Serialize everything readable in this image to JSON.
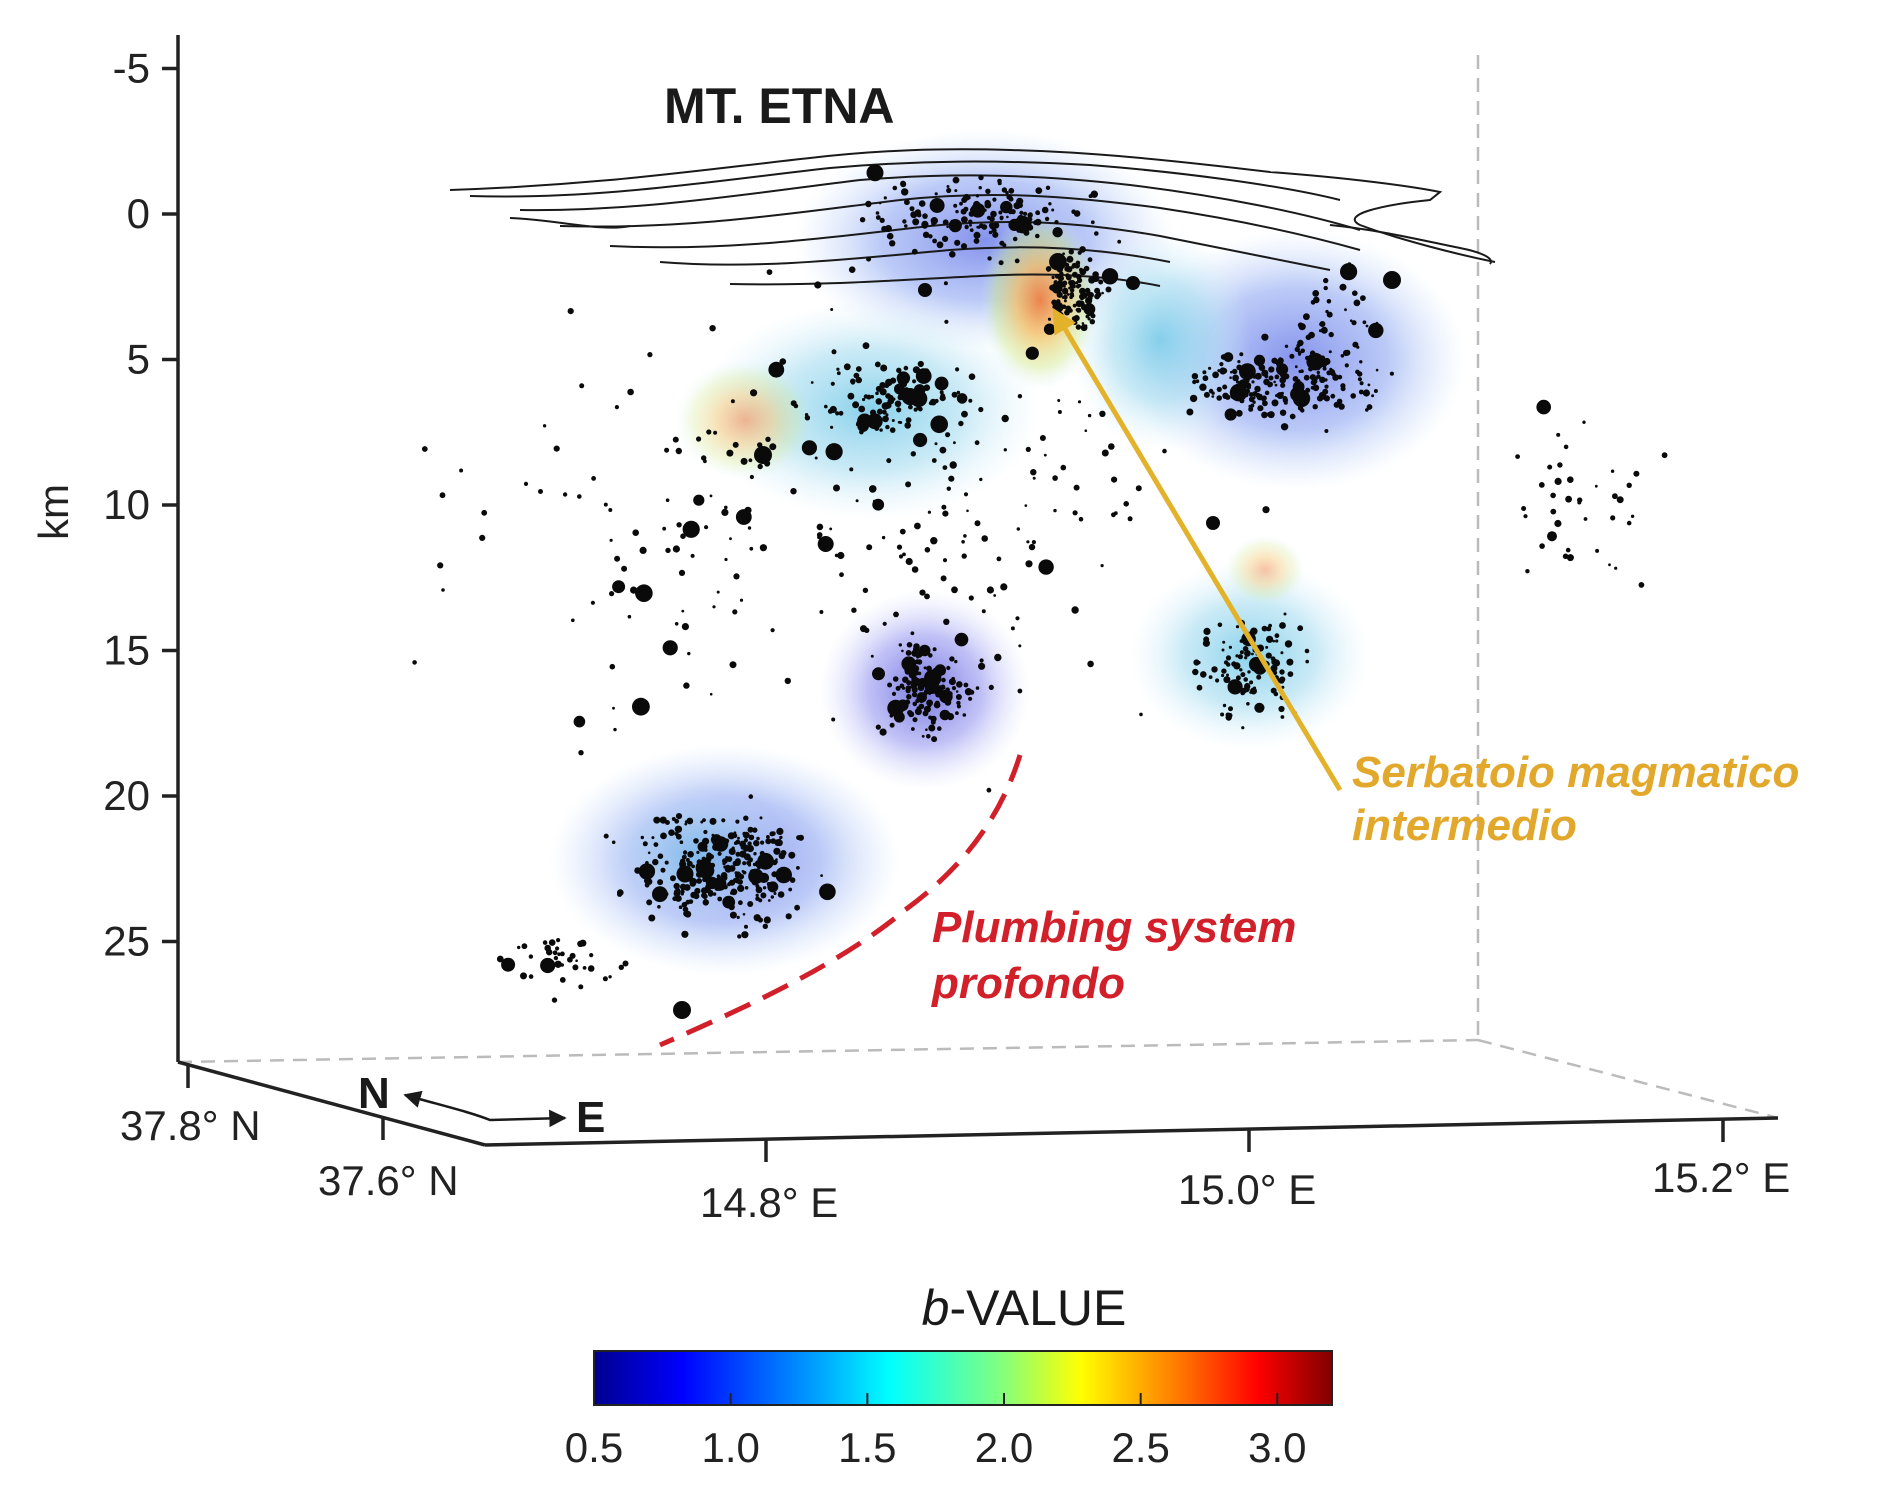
{
  "figure": {
    "title": "MT. ETNA",
    "depth_axis": {
      "label": "km",
      "ticks": [
        "-5",
        "0",
        "5",
        "10",
        "15",
        "20",
        "25"
      ],
      "values": [
        -5,
        0,
        5,
        10,
        15,
        20,
        25
      ]
    },
    "lat_axis": {
      "ticks": [
        "37.8° N",
        "37.6° N"
      ]
    },
    "lon_axis": {
      "ticks": [
        "14.8° E",
        "15.0° E",
        "15.2° E"
      ]
    },
    "compass": {
      "north": "N",
      "east": "E"
    },
    "annotations": {
      "magma_reservoir": {
        "line1": "Serbatoio magmatico",
        "line2": "intermedio",
        "color": "#e2a82b"
      },
      "plumbing_system": {
        "line1": "Plumbing system",
        "line2": "profondo",
        "color": "#d1202a"
      }
    },
    "colorbar": {
      "title_italic": "b",
      "title_rest": "-VALUE",
      "ticks": [
        "0.5",
        "1.0",
        "1.5",
        "2.0",
        "2.5",
        "3.0"
      ],
      "range": [
        0.5,
        3.2
      ],
      "colormap": "jet"
    },
    "clusters": [
      {
        "name": "summit-cluster",
        "color": "#9aa8f0"
      },
      {
        "name": "high-b-anomaly",
        "color": "#f5a55a"
      },
      {
        "name": "western-cluster",
        "color": "#9fe0ee"
      },
      {
        "name": "eastern-cluster",
        "color": "#7ea6f2"
      },
      {
        "name": "east-mid-cluster",
        "color": "#a6dcf0"
      },
      {
        "name": "central-deep-cluster",
        "color": "#8f8ff0"
      },
      {
        "name": "southwest-deep-cluster",
        "color": "#8ea6f2"
      }
    ]
  }
}
